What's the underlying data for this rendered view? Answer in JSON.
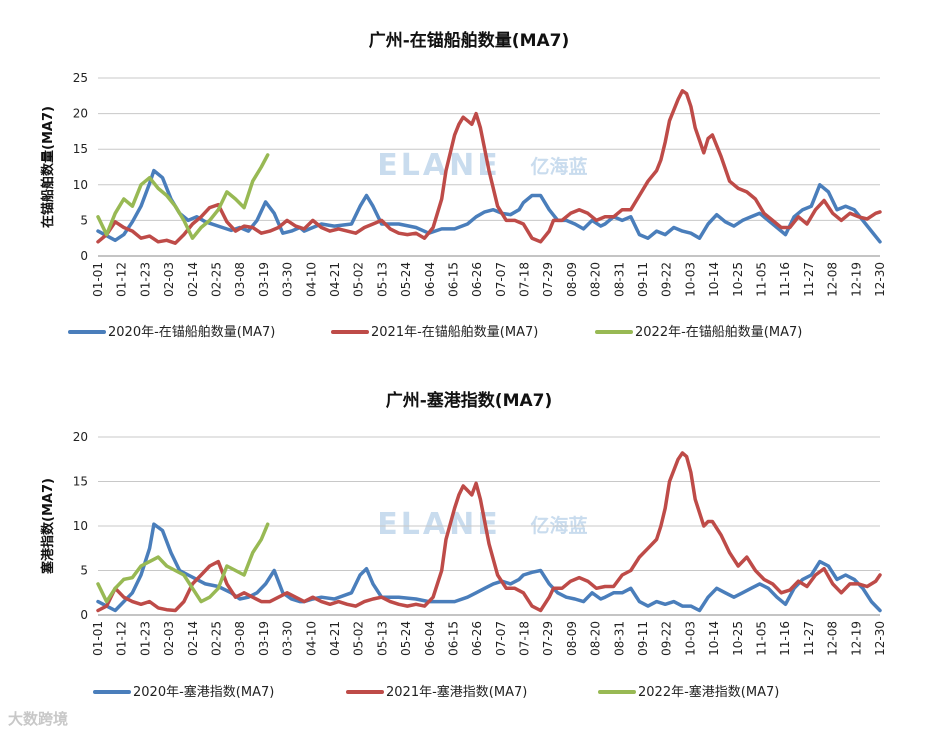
{
  "watermark": {
    "brand": "ELANE",
    "cn": "亿海蓝"
  },
  "footer": {
    "text": "大数跨境"
  },
  "chart_data": [
    {
      "type": "line",
      "title": "广州-在锚船舶数量(MA7)",
      "xlabel": "",
      "ylabel": "在锚船舶数量(MA7)",
      "ylim": [
        0,
        25
      ],
      "yticks": [
        "0",
        "5",
        "10",
        "15",
        "20",
        "25"
      ],
      "categories": [
        "01-01",
        "01-12",
        "01-23",
        "02-03",
        "02-14",
        "02-25",
        "03-08",
        "03-19",
        "03-30",
        "04-10",
        "04-21",
        "05-02",
        "05-13",
        "05-24",
        "06-04",
        "06-15",
        "06-26",
        "07-07",
        "07-18",
        "07-29",
        "08-09",
        "08-20",
        "08-31",
        "09-11",
        "09-22",
        "10-03",
        "10-14",
        "10-25",
        "11-05",
        "11-16",
        "11-27",
        "12-08",
        "12-19",
        "12-30"
      ],
      "legend_position": "bottom",
      "series": [
        {
          "name": "2020年-在锚船舶数量(MA7)",
          "color": "#4a7ebb",
          "x": [
            0,
            8,
            12,
            16,
            20,
            24,
            26,
            30,
            34,
            38,
            42,
            46,
            50,
            56,
            62,
            66,
            70,
            74,
            78,
            82,
            86,
            90,
            94,
            96,
            100,
            104,
            110,
            118,
            122,
            125,
            128,
            132,
            140,
            148,
            154,
            160,
            166,
            172,
            176,
            180,
            184,
            188,
            192,
            196,
            198,
            202,
            206,
            210,
            214,
            218,
            222,
            226,
            230,
            234,
            236,
            240,
            244,
            248,
            252,
            256,
            260,
            264,
            268,
            272,
            276,
            280,
            284,
            288,
            292,
            296,
            300,
            304,
            308,
            312,
            316,
            320,
            324,
            328,
            332,
            336,
            340,
            344,
            348,
            352,
            356,
            360,
            364
          ],
          "y": [
            3.5,
            2.2,
            3.0,
            4.8,
            7.0,
            10.2,
            12.0,
            11.0,
            8.0,
            6.0,
            5.0,
            5.5,
            4.8,
            4.2,
            3.6,
            4.0,
            3.5,
            5.0,
            7.6,
            6.0,
            3.2,
            3.5,
            4.0,
            3.5,
            4.0,
            4.5,
            4.2,
            4.5,
            7.0,
            8.5,
            7.0,
            4.5,
            4.5,
            4.0,
            3.2,
            3.8,
            3.8,
            4.5,
            5.5,
            6.2,
            6.5,
            6.0,
            5.8,
            6.5,
            7.5,
            8.5,
            8.5,
            6.5,
            5.0,
            5.0,
            4.5,
            3.8,
            5.0,
            4.2,
            4.5,
            5.5,
            5.0,
            5.5,
            3.0,
            2.5,
            3.5,
            3.0,
            4.0,
            3.5,
            3.2,
            2.5,
            4.5,
            5.8,
            4.8,
            4.2,
            5.0,
            5.5,
            6.0,
            5.0,
            4.0,
            3.0,
            5.5,
            6.5,
            7.0,
            10.0,
            9.0,
            6.5,
            7.0,
            6.5,
            5.0,
            3.5,
            2.0
          ]
        },
        {
          "name": "2021年-在锚船舶数量(MA7)",
          "color": "#be4b48",
          "x": [
            0,
            4,
            8,
            12,
            16,
            20,
            24,
            28,
            32,
            36,
            40,
            44,
            48,
            52,
            56,
            60,
            64,
            68,
            72,
            76,
            80,
            84,
            88,
            92,
            96,
            100,
            104,
            108,
            112,
            116,
            120,
            124,
            128,
            132,
            136,
            140,
            144,
            148,
            152,
            156,
            160,
            162,
            166,
            168,
            170,
            172,
            174,
            176,
            178,
            180,
            182,
            186,
            190,
            194,
            198,
            202,
            206,
            210,
            212,
            214,
            216,
            220,
            224,
            228,
            232,
            236,
            240,
            244,
            248,
            252,
            256,
            260,
            262,
            264,
            266,
            270,
            272,
            274,
            276,
            278,
            282,
            284,
            286,
            290,
            294,
            298,
            302,
            306,
            310,
            314,
            318,
            322,
            326,
            330,
            334,
            338,
            342,
            346,
            350,
            354,
            358,
            362,
            364
          ],
          "y": [
            2.0,
            3.0,
            4.8,
            4.0,
            3.5,
            2.5,
            2.8,
            2.0,
            2.2,
            1.8,
            3.0,
            4.5,
            5.5,
            6.8,
            7.2,
            4.8,
            3.5,
            4.2,
            4.0,
            3.2,
            3.5,
            4.0,
            5.0,
            4.2,
            3.8,
            5.0,
            4.0,
            3.5,
            3.8,
            3.5,
            3.2,
            4.0,
            4.5,
            5.0,
            3.8,
            3.2,
            3.0,
            3.2,
            2.5,
            4.0,
            8.0,
            12.0,
            17.0,
            18.5,
            19.5,
            19.0,
            18.5,
            20.0,
            18.0,
            15.0,
            12.0,
            7.0,
            5.0,
            5.0,
            4.5,
            2.5,
            2.0,
            3.5,
            5.0,
            5.0,
            5.0,
            6.0,
            6.5,
            6.0,
            5.0,
            5.5,
            5.5,
            6.5,
            6.5,
            8.5,
            10.5,
            12.0,
            13.5,
            16.0,
            19.0,
            22.0,
            23.2,
            22.8,
            21.0,
            18.0,
            14.5,
            16.5,
            17.0,
            14.0,
            10.5,
            9.5,
            9.0,
            8.0,
            6.0,
            5.0,
            4.0,
            4.0,
            5.5,
            4.5,
            6.5,
            7.8,
            6.0,
            5.0,
            6.0,
            5.5,
            5.2,
            6.0,
            6.2
          ]
        },
        {
          "name": "2022年-在锚船舶数量(MA7)",
          "color": "#98b954",
          "x": [
            0,
            4,
            8,
            12,
            16,
            20,
            24,
            28,
            32,
            36,
            40,
            44,
            48,
            52,
            56,
            60,
            64,
            68,
            72,
            76,
            79
          ],
          "y": [
            5.5,
            3.0,
            6.0,
            8.0,
            7.0,
            10.0,
            11.0,
            9.5,
            8.5,
            7.0,
            5.0,
            2.5,
            4.0,
            5.0,
            6.5,
            9.0,
            8.0,
            6.8,
            10.5,
            12.5,
            14.2
          ]
        }
      ]
    },
    {
      "type": "line",
      "title": "广州-塞港指数(MA7)",
      "xlabel": "",
      "ylabel": "塞港指数(MA7)",
      "ylim": [
        0,
        20
      ],
      "yticks": [
        "0",
        "5",
        "10",
        "15",
        "20"
      ],
      "categories": [
        "01-01",
        "01-12",
        "01-23",
        "02-03",
        "02-14",
        "02-25",
        "03-08",
        "03-19",
        "03-30",
        "04-10",
        "04-21",
        "05-02",
        "05-13",
        "05-24",
        "06-04",
        "06-15",
        "06-26",
        "07-07",
        "07-18",
        "07-29",
        "08-09",
        "08-20",
        "08-31",
        "09-11",
        "09-22",
        "10-03",
        "10-14",
        "10-25",
        "11-05",
        "11-16",
        "11-27",
        "12-08",
        "12-19",
        "12-30"
      ],
      "legend_position": "bottom",
      "series": [
        {
          "name": "2020年-塞港指数(MA7)",
          "color": "#4a7ebb",
          "x": [
            0,
            8,
            12,
            16,
            20,
            24,
            26,
            30,
            34,
            38,
            42,
            46,
            50,
            56,
            62,
            66,
            70,
            74,
            78,
            82,
            86,
            90,
            94,
            96,
            100,
            104,
            110,
            118,
            122,
            125,
            128,
            132,
            140,
            148,
            154,
            160,
            166,
            172,
            176,
            180,
            184,
            188,
            192,
            196,
            198,
            202,
            206,
            210,
            214,
            218,
            222,
            226,
            230,
            234,
            236,
            240,
            244,
            248,
            252,
            256,
            260,
            264,
            268,
            272,
            276,
            280,
            284,
            288,
            292,
            296,
            300,
            304,
            308,
            312,
            316,
            320,
            324,
            328,
            332,
            336,
            340,
            344,
            348,
            352,
            356,
            360,
            364
          ],
          "y": [
            1.5,
            0.5,
            1.5,
            2.5,
            4.5,
            7.5,
            10.2,
            9.5,
            7.0,
            5.0,
            4.5,
            4.0,
            3.5,
            3.2,
            2.5,
            1.8,
            2.0,
            2.5,
            3.5,
            5.0,
            2.5,
            1.8,
            1.5,
            1.5,
            1.8,
            2.0,
            1.8,
            2.5,
            4.5,
            5.2,
            3.5,
            2.0,
            2.0,
            1.8,
            1.5,
            1.5,
            1.5,
            2.0,
            2.5,
            3.0,
            3.5,
            3.8,
            3.5,
            4.0,
            4.5,
            4.8,
            5.0,
            3.5,
            2.5,
            2.0,
            1.8,
            1.5,
            2.5,
            1.8,
            2.0,
            2.5,
            2.5,
            3.0,
            1.5,
            1.0,
            1.5,
            1.2,
            1.5,
            1.0,
            1.0,
            0.5,
            2.0,
            3.0,
            2.5,
            2.0,
            2.5,
            3.0,
            3.5,
            3.0,
            2.0,
            1.2,
            3.0,
            4.0,
            4.5,
            6.0,
            5.5,
            4.0,
            4.5,
            4.0,
            3.0,
            1.5,
            0.5
          ]
        },
        {
          "name": "2021年-塞港指数(MA7)",
          "color": "#be4b48",
          "x": [
            0,
            4,
            8,
            12,
            16,
            20,
            24,
            28,
            32,
            36,
            40,
            44,
            48,
            52,
            56,
            60,
            64,
            68,
            72,
            76,
            80,
            84,
            88,
            92,
            96,
            100,
            104,
            108,
            112,
            116,
            120,
            124,
            128,
            132,
            136,
            140,
            144,
            148,
            152,
            156,
            160,
            162,
            166,
            168,
            170,
            172,
            174,
            176,
            178,
            180,
            182,
            186,
            190,
            194,
            198,
            202,
            206,
            210,
            212,
            214,
            216,
            220,
            224,
            228,
            232,
            236,
            240,
            244,
            248,
            252,
            256,
            260,
            262,
            264,
            266,
            270,
            272,
            274,
            276,
            278,
            282,
            284,
            286,
            290,
            294,
            298,
            302,
            306,
            310,
            314,
            318,
            322,
            326,
            330,
            334,
            338,
            342,
            346,
            350,
            354,
            358,
            362,
            364
          ],
          "y": [
            0.5,
            1.0,
            3.0,
            2.0,
            1.5,
            1.2,
            1.5,
            0.8,
            0.6,
            0.5,
            1.5,
            3.5,
            4.5,
            5.5,
            6.0,
            3.5,
            2.0,
            2.5,
            2.0,
            1.5,
            1.5,
            2.0,
            2.5,
            2.0,
            1.5,
            2.0,
            1.5,
            1.2,
            1.5,
            1.2,
            1.0,
            1.5,
            1.8,
            2.0,
            1.5,
            1.2,
            1.0,
            1.2,
            1.0,
            2.0,
            5.0,
            8.5,
            12.0,
            13.5,
            14.5,
            14.0,
            13.5,
            14.8,
            13.0,
            10.5,
            8.0,
            4.5,
            3.0,
            3.0,
            2.5,
            1.0,
            0.5,
            2.0,
            3.0,
            3.0,
            3.0,
            3.8,
            4.2,
            3.8,
            3.0,
            3.2,
            3.2,
            4.5,
            5.0,
            6.5,
            7.5,
            8.5,
            10.0,
            12.0,
            15.0,
            17.5,
            18.2,
            17.8,
            16.0,
            13.0,
            10.0,
            10.5,
            10.5,
            9.0,
            7.0,
            5.5,
            6.5,
            5.0,
            4.0,
            3.5,
            2.5,
            2.8,
            3.8,
            3.2,
            4.5,
            5.2,
            3.5,
            2.5,
            3.5,
            3.5,
            3.2,
            3.8,
            4.5
          ]
        },
        {
          "name": "2022年-塞港指数(MA7)",
          "color": "#98b954",
          "x": [
            0,
            4,
            8,
            12,
            16,
            20,
            24,
            28,
            32,
            36,
            40,
            44,
            48,
            52,
            56,
            60,
            64,
            68,
            72,
            76,
            79
          ],
          "y": [
            3.5,
            1.5,
            3.0,
            4.0,
            4.2,
            5.5,
            6.0,
            6.5,
            5.5,
            5.0,
            4.5,
            3.0,
            1.5,
            2.0,
            3.0,
            5.5,
            5.0,
            4.5,
            7.0,
            8.5,
            10.2
          ]
        }
      ]
    }
  ]
}
